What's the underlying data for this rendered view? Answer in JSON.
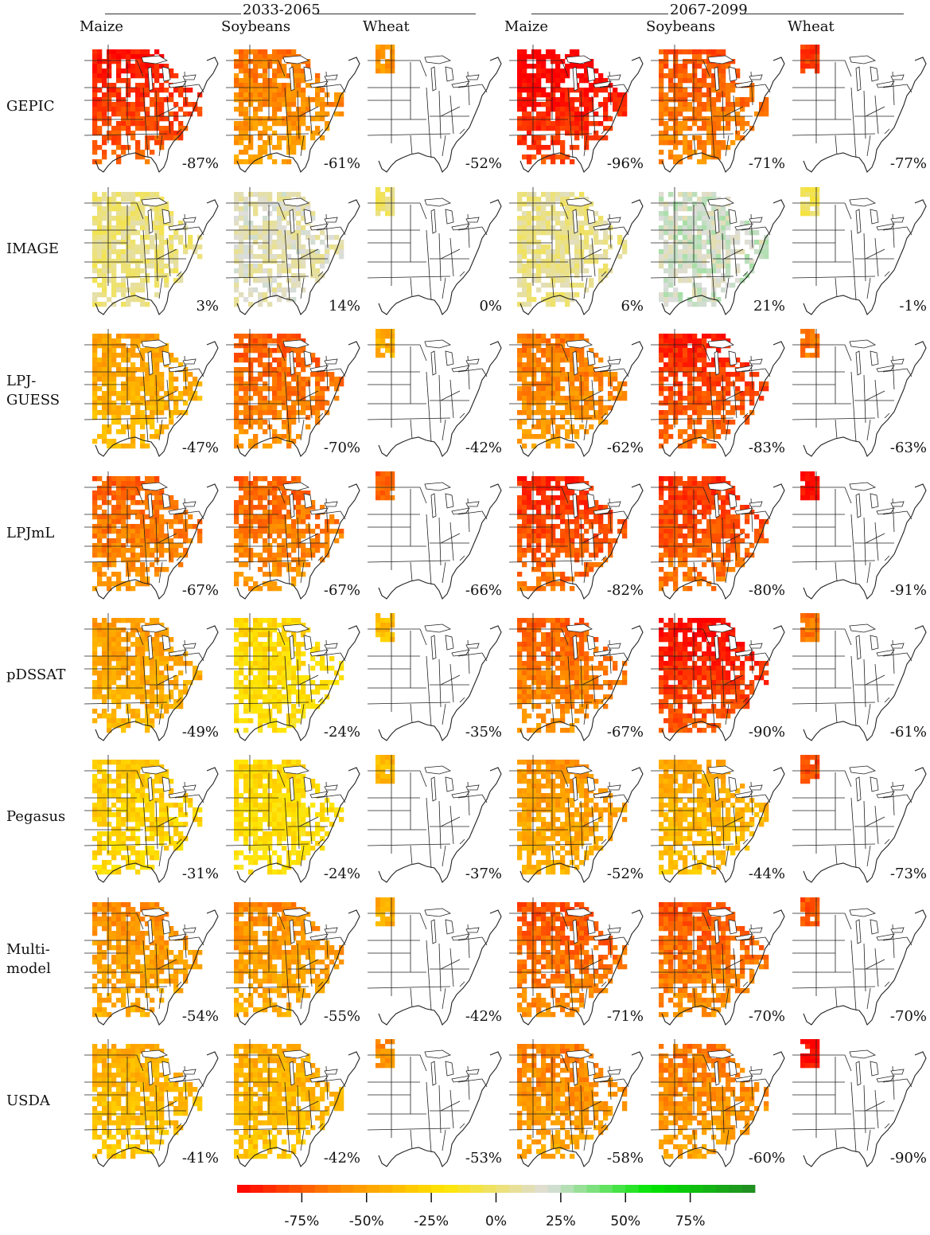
{
  "periods": [
    {
      "label": "2033-2065",
      "crops": [
        "Maize",
        "Soybeans",
        "Wheat"
      ]
    },
    {
      "label": "2067-2099",
      "crops": [
        "Maize",
        "Soybeans",
        "Wheat"
      ]
    }
  ],
  "models": [
    {
      "label": "GEPIC",
      "values": [
        "-87%",
        "-61%",
        "-52%",
        "-96%",
        "-71%",
        "-77%"
      ]
    },
    {
      "label": "IMAGE",
      "values": [
        "3%",
        "14%",
        "0%",
        "6%",
        "21%",
        "-1%"
      ]
    },
    {
      "label": "LPJ-\nGUESS",
      "values": [
        "-47%",
        "-70%",
        "-42%",
        "-62%",
        "-83%",
        "-63%"
      ]
    },
    {
      "label": "LPJmL",
      "values": [
        "-67%",
        "-67%",
        "-66%",
        "-82%",
        "-80%",
        "-91%"
      ]
    },
    {
      "label": "pDSSAT",
      "values": [
        "-49%",
        "-24%",
        "-35%",
        "-67%",
        "-90%",
        "-61%"
      ]
    },
    {
      "label": "Pegasus",
      "values": [
        "-31%",
        "-24%",
        "-37%",
        "-52%",
        "-44%",
        "-73%"
      ]
    },
    {
      "label": "Multi-\nmodel",
      "values": [
        "-54%",
        "-55%",
        "-42%",
        "-71%",
        "-70%",
        "-70%"
      ]
    },
    {
      "label": "USDA",
      "values": [
        "-41%",
        "-42%",
        "-53%",
        "-58%",
        "-60%",
        "-90%"
      ]
    }
  ],
  "colorbar": {
    "range": [
      -100,
      100
    ],
    "ticks": [
      -75,
      -50,
      -25,
      0,
      25,
      50,
      75
    ],
    "tick_labels": [
      "-75%",
      "-50%",
      "-25%",
      "0%",
      "25%",
      "50%",
      "75%"
    ],
    "colors": [
      "#ff0000",
      "#ff8c00",
      "#ffe600",
      "#dddddd",
      "#00e600",
      "#228b22"
    ]
  }
}
